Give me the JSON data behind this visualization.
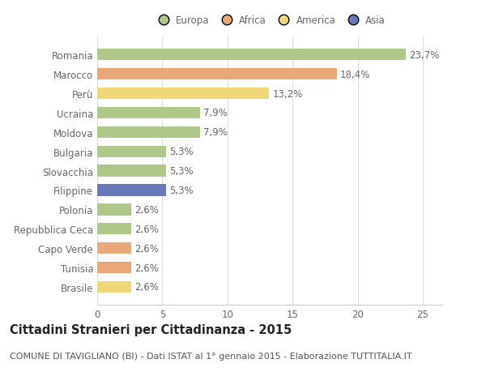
{
  "categories": [
    "Brasile",
    "Tunisia",
    "Capo Verde",
    "Repubblica Ceca",
    "Polonia",
    "Filippine",
    "Slovacchia",
    "Bulgaria",
    "Moldova",
    "Ucraina",
    "Perù",
    "Marocco",
    "Romania"
  ],
  "values": [
    2.6,
    2.6,
    2.6,
    2.6,
    2.6,
    5.3,
    5.3,
    5.3,
    7.9,
    7.9,
    13.2,
    18.4,
    23.7
  ],
  "labels": [
    "2,6%",
    "2,6%",
    "2,6%",
    "2,6%",
    "2,6%",
    "5,3%",
    "5,3%",
    "5,3%",
    "7,9%",
    "7,9%",
    "13,2%",
    "18,4%",
    "23,7%"
  ],
  "colors": [
    "#f0d878",
    "#e8a878",
    "#e8a878",
    "#aec889",
    "#aec889",
    "#6878bb",
    "#aec889",
    "#aec889",
    "#aec889",
    "#aec889",
    "#f0d878",
    "#e8a878",
    "#aec889"
  ],
  "legend": [
    {
      "label": "Europa",
      "color": "#aec889"
    },
    {
      "label": "Africa",
      "color": "#e8a878"
    },
    {
      "label": "America",
      "color": "#f0d878"
    },
    {
      "label": "Asia",
      "color": "#6878bb"
    }
  ],
  "title": "Cittadini Stranieri per Cittadinanza - 2015",
  "subtitle": "COMUNE DI TAVIGLIANO (BI) - Dati ISTAT al 1° gennaio 2015 - Elaborazione TUTTITALIA.IT",
  "xlim": [
    0,
    26.5
  ],
  "xticks": [
    0,
    5,
    10,
    15,
    20,
    25
  ],
  "bar_height": 0.6,
  "background_color": "#ffffff",
  "grid_color": "#dddddd",
  "label_fontsize": 8.5,
  "tick_fontsize": 8.5,
  "title_fontsize": 10.5,
  "subtitle_fontsize": 8.0,
  "text_color": "#666666"
}
